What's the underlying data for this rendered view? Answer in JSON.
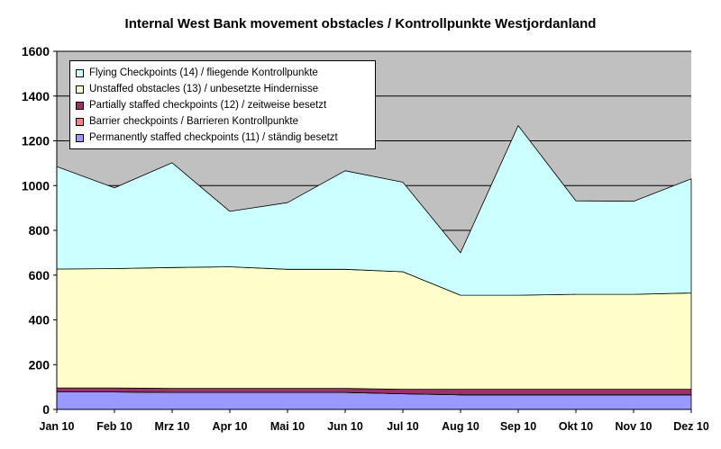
{
  "chart_data": {
    "type": "area",
    "stacked": true,
    "title": "Internal West Bank movement obstacles / Kontrollpunkte Westjordanland",
    "categories": [
      "Jan 10",
      "Feb 10",
      "Mrz 10",
      "Apr 10",
      "Mai 10",
      "Jun 10",
      "Jul 10",
      "Aug 10",
      "Sep 10",
      "Okt 10",
      "Nov 10",
      "Dez 10"
    ],
    "ylim": [
      0,
      1600
    ],
    "yticks": [
      "0",
      "200",
      "400",
      "600",
      "800",
      "1000",
      "1200",
      "1400",
      "1600"
    ],
    "grid": true,
    "legend_position": "top-left",
    "series": [
      {
        "name": "Permanently staffed checkpoints (11) / ständig besetzt",
        "color": "#9999ff",
        "values": [
          78,
          78,
          76,
          76,
          76,
          76,
          70,
          65,
          65,
          65,
          65,
          65
        ]
      },
      {
        "name": "Barrier checkpoints / Barrieren Kontrollpunkte",
        "color": "#ff8080",
        "values": [
          0,
          0,
          0,
          0,
          0,
          0,
          0,
          0,
          0,
          0,
          0,
          0
        ]
      },
      {
        "name": "Partially staffed checkpoints (12) / zeitweise besetzt",
        "color": "#993366",
        "values": [
          18,
          18,
          18,
          18,
          18,
          18,
          20,
          25,
          25,
          25,
          25,
          25
        ]
      },
      {
        "name": "Unstaffed obstacles (13) / unbesetzte Hindernisse",
        "color": "#ffffcc",
        "values": [
          531,
          533,
          540,
          543,
          532,
          532,
          525,
          420,
          420,
          424,
          424,
          430
        ]
      },
      {
        "name": "Flying Checkpoints (14) / fliegende Kontrollpunkte",
        "color": "#ccffff",
        "values": [
          458,
          361,
          468,
          248,
          298,
          440,
          400,
          190,
          758,
          418,
          416,
          510
        ]
      }
    ],
    "colors": {
      "plot_background": "#c0c0c0",
      "gridline": "#000000",
      "text": "#000000"
    }
  }
}
